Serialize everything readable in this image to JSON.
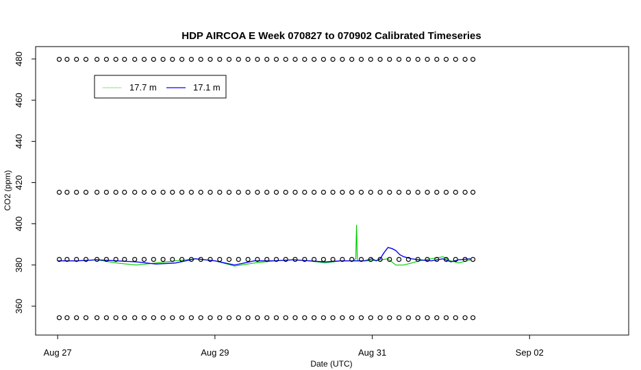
{
  "chart_data": {
    "type": "line",
    "title": "HDP AIRCOA E  Week 070827 to 070902  Calibrated Timeseries",
    "xlabel": "Date (UTC)",
    "ylabel": "CO2 (ppm)",
    "x_ticks": [
      "Aug 27",
      "Aug 29",
      "Aug 31",
      "Sep 02"
    ],
    "x_tick_days": [
      0,
      2,
      4,
      6
    ],
    "y_ticks": [
      360,
      380,
      400,
      420,
      440,
      460,
      480
    ],
    "xlim_days": [
      -0.28,
      7.26
    ],
    "ylim": [
      346,
      486
    ],
    "legend": {
      "position": "top-left",
      "entries": [
        {
          "name": "17.7 m",
          "color": "#00cc00"
        },
        {
          "name": "17.1 m",
          "color": "#0000ff"
        }
      ]
    },
    "series": [
      {
        "name": "17.7 m",
        "color": "#00cc00",
        "x_days": [
          0.0,
          0.25,
          0.5,
          0.75,
          1.0,
          1.25,
          1.5,
          1.75,
          2.0,
          2.25,
          2.5,
          2.75,
          3.0,
          3.2,
          3.4,
          3.6,
          3.75,
          3.79,
          3.8,
          3.81,
          3.85,
          4.0,
          4.1,
          4.2,
          4.3,
          4.4,
          4.5,
          4.6,
          4.75,
          4.9,
          5.0,
          5.1,
          5.25
        ],
        "values": [
          382,
          382,
          382.5,
          381,
          380,
          381,
          382,
          383,
          382,
          379.5,
          381,
          382,
          382.5,
          382,
          381,
          382,
          382,
          383,
          399.5,
          382,
          382,
          382,
          382.5,
          383,
          380,
          380,
          381,
          382,
          383,
          384,
          382,
          381,
          382.5
        ]
      },
      {
        "name": "17.1 m",
        "color": "#0000ff",
        "x_days": [
          0.0,
          0.25,
          0.5,
          0.75,
          1.0,
          1.25,
          1.5,
          1.75,
          2.0,
          2.25,
          2.5,
          2.75,
          3.0,
          3.2,
          3.4,
          3.6,
          3.8,
          3.9,
          4.0,
          4.05,
          4.1,
          4.15,
          4.2,
          4.25,
          4.3,
          4.35,
          4.4,
          4.5,
          4.6,
          4.75,
          4.9,
          5.0,
          5.1,
          5.25
        ],
        "values": [
          382,
          382,
          382.5,
          382,
          381.5,
          380.5,
          381,
          383,
          382,
          380,
          382,
          382,
          382.5,
          382,
          381.5,
          382,
          382,
          382,
          383,
          382,
          383,
          386,
          388.5,
          388,
          387,
          385,
          384,
          383,
          382.5,
          382,
          383,
          381.5,
          382.5,
          383
        ]
      },
      {
        "name": "",
        "color": "#000000",
        "marker": "circle",
        "reference_levels": [
          354.4,
          382.7,
          415.3,
          479.8
        ],
        "x_days": [
          0.02,
          0.12,
          0.24,
          0.36,
          0.5,
          0.62,
          0.74,
          0.85,
          0.98,
          1.1,
          1.22,
          1.34,
          1.46,
          1.58,
          1.7,
          1.82,
          1.94,
          2.06,
          2.18,
          2.3,
          2.42,
          2.54,
          2.66,
          2.78,
          2.9,
          3.02,
          3.14,
          3.26,
          3.38,
          3.5,
          3.62,
          3.74,
          3.86,
          3.98,
          4.1,
          4.22,
          4.34,
          4.46,
          4.58,
          4.7,
          4.82,
          4.94,
          5.06,
          5.18,
          5.28
        ]
      }
    ]
  }
}
